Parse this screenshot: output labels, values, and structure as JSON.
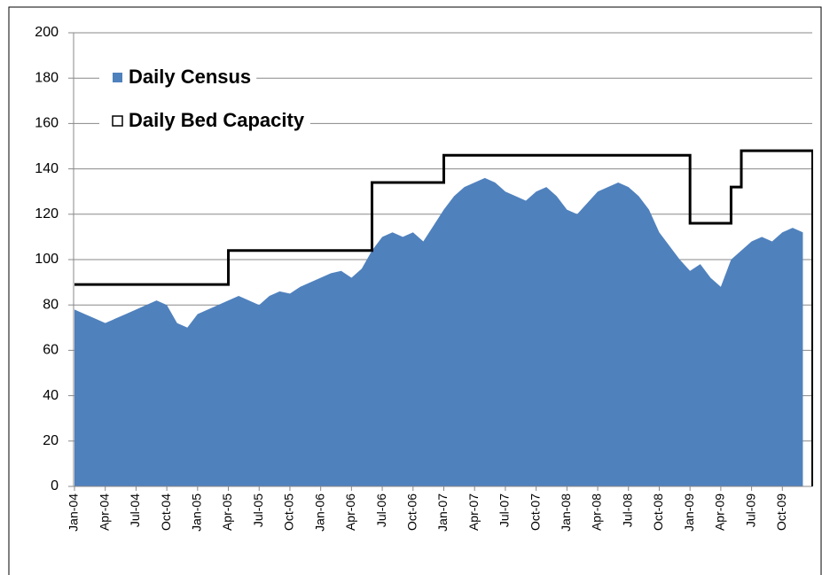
{
  "chart_data": {
    "type": "area",
    "categories": [
      "Jan-04",
      null,
      null,
      "Apr-04",
      null,
      null,
      "Jul-04",
      null,
      null,
      "Oct-04",
      null,
      null,
      "Jan-05",
      null,
      null,
      "Apr-05",
      null,
      null,
      "Jul-05",
      null,
      null,
      "Oct-05",
      null,
      null,
      "Jan-06",
      null,
      null,
      "Apr-06",
      null,
      null,
      "Jul-06",
      null,
      null,
      "Oct-06",
      null,
      null,
      "Jan-07",
      null,
      null,
      "Apr-07",
      null,
      null,
      "Jul-07",
      null,
      null,
      "Oct-07",
      null,
      null,
      "Jan-08",
      null,
      null,
      "Apr-08",
      null,
      null,
      "Jul-08",
      null,
      null,
      "Oct-08",
      null,
      null,
      "Jan-09",
      null,
      null,
      "Apr-09",
      null,
      null,
      "Jul-09",
      null,
      null,
      "Oct-09",
      null,
      null
    ],
    "series": [
      {
        "name": "Daily Census",
        "type": "area",
        "color": "#4f81bd",
        "values": [
          78,
          76,
          74,
          72,
          74,
          76,
          78,
          80,
          82,
          80,
          72,
          70,
          76,
          78,
          80,
          82,
          84,
          82,
          80,
          84,
          86,
          85,
          88,
          90,
          92,
          94,
          95,
          92,
          96,
          104,
          110,
          112,
          110,
          112,
          108,
          115,
          122,
          128,
          132,
          134,
          136,
          134,
          130,
          128,
          126,
          130,
          132,
          128,
          122,
          120,
          125,
          130,
          132,
          134,
          132,
          128,
          122,
          112,
          106,
          100,
          95,
          98,
          92,
          88,
          100,
          104,
          108,
          110,
          108,
          112,
          114,
          112
        ]
      },
      {
        "name": "Daily Bed Capacity",
        "type": "step",
        "color": "#000000",
        "values": [
          89,
          89,
          89,
          89,
          89,
          89,
          89,
          89,
          89,
          89,
          89,
          89,
          89,
          89,
          89,
          104,
          104,
          104,
          104,
          104,
          104,
          104,
          104,
          104,
          104,
          104,
          104,
          104,
          104,
          134,
          134,
          134,
          134,
          134,
          134,
          134,
          146,
          146,
          146,
          146,
          146,
          146,
          146,
          146,
          146,
          146,
          146,
          146,
          146,
          146,
          146,
          146,
          146,
          146,
          146,
          146,
          146,
          146,
          146,
          146,
          116,
          116,
          116,
          116,
          132,
          148,
          148,
          148,
          148,
          148,
          148,
          148
        ]
      }
    ],
    "ylim": [
      0,
      200
    ],
    "yticks": [
      0,
      20,
      40,
      60,
      80,
      100,
      120,
      140,
      160,
      180,
      200
    ],
    "grid": true,
    "legend": "top-left"
  }
}
